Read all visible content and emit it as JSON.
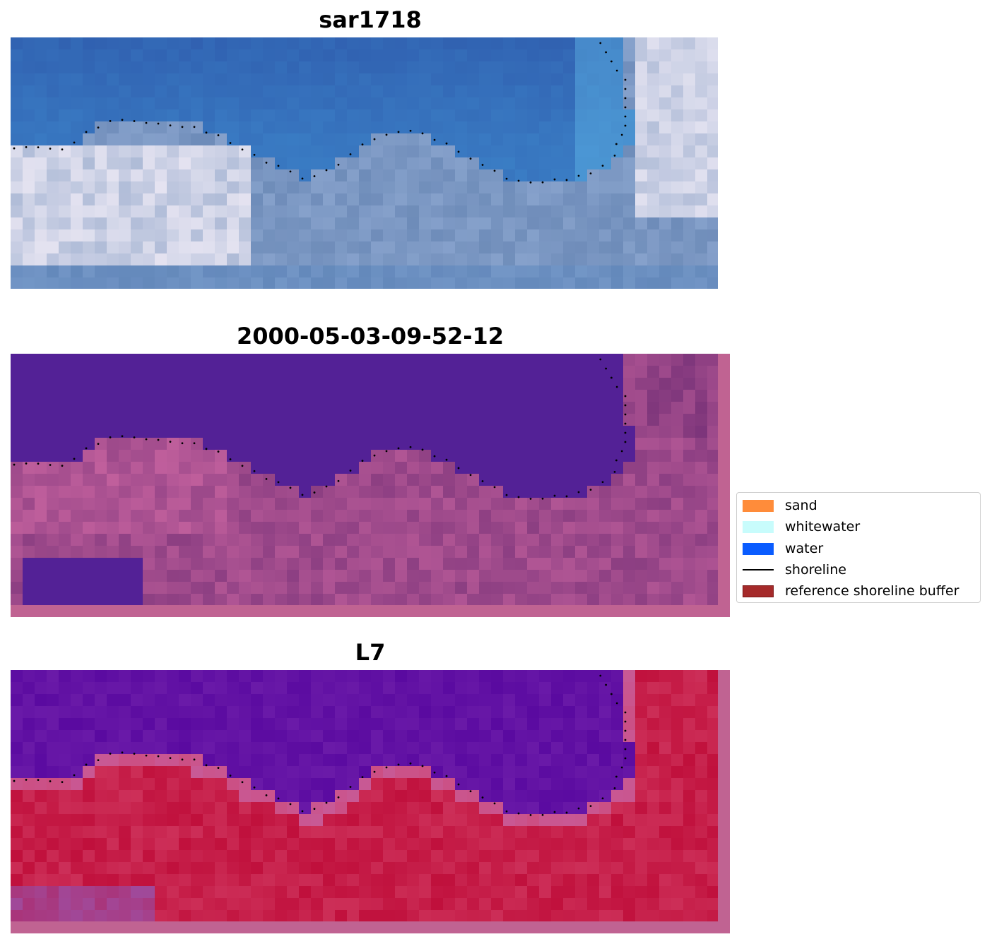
{
  "panels": [
    {
      "title": "sar1718",
      "kind": "rgb"
    },
    {
      "title": "2000-05-03-09-52-12",
      "kind": "classified"
    },
    {
      "title": "L7",
      "kind": "index"
    }
  ],
  "legend": {
    "items": [
      {
        "label": "sand",
        "color": "#ff8c3a",
        "type": "patch"
      },
      {
        "label": "whitewater",
        "color": "#c8fcfc",
        "type": "patch"
      },
      {
        "label": "water",
        "color": "#0a5cff",
        "type": "patch"
      },
      {
        "label": "shoreline",
        "color": "#000000",
        "type": "line"
      },
      {
        "label": "reference shoreline buffer",
        "color": "#a52a2a",
        "type": "patch"
      }
    ]
  },
  "colors": {
    "water_class": "#532196",
    "buffer_overlay": "#c06392",
    "index_high": "#c0103c",
    "index_low": "#5a0aa0"
  }
}
